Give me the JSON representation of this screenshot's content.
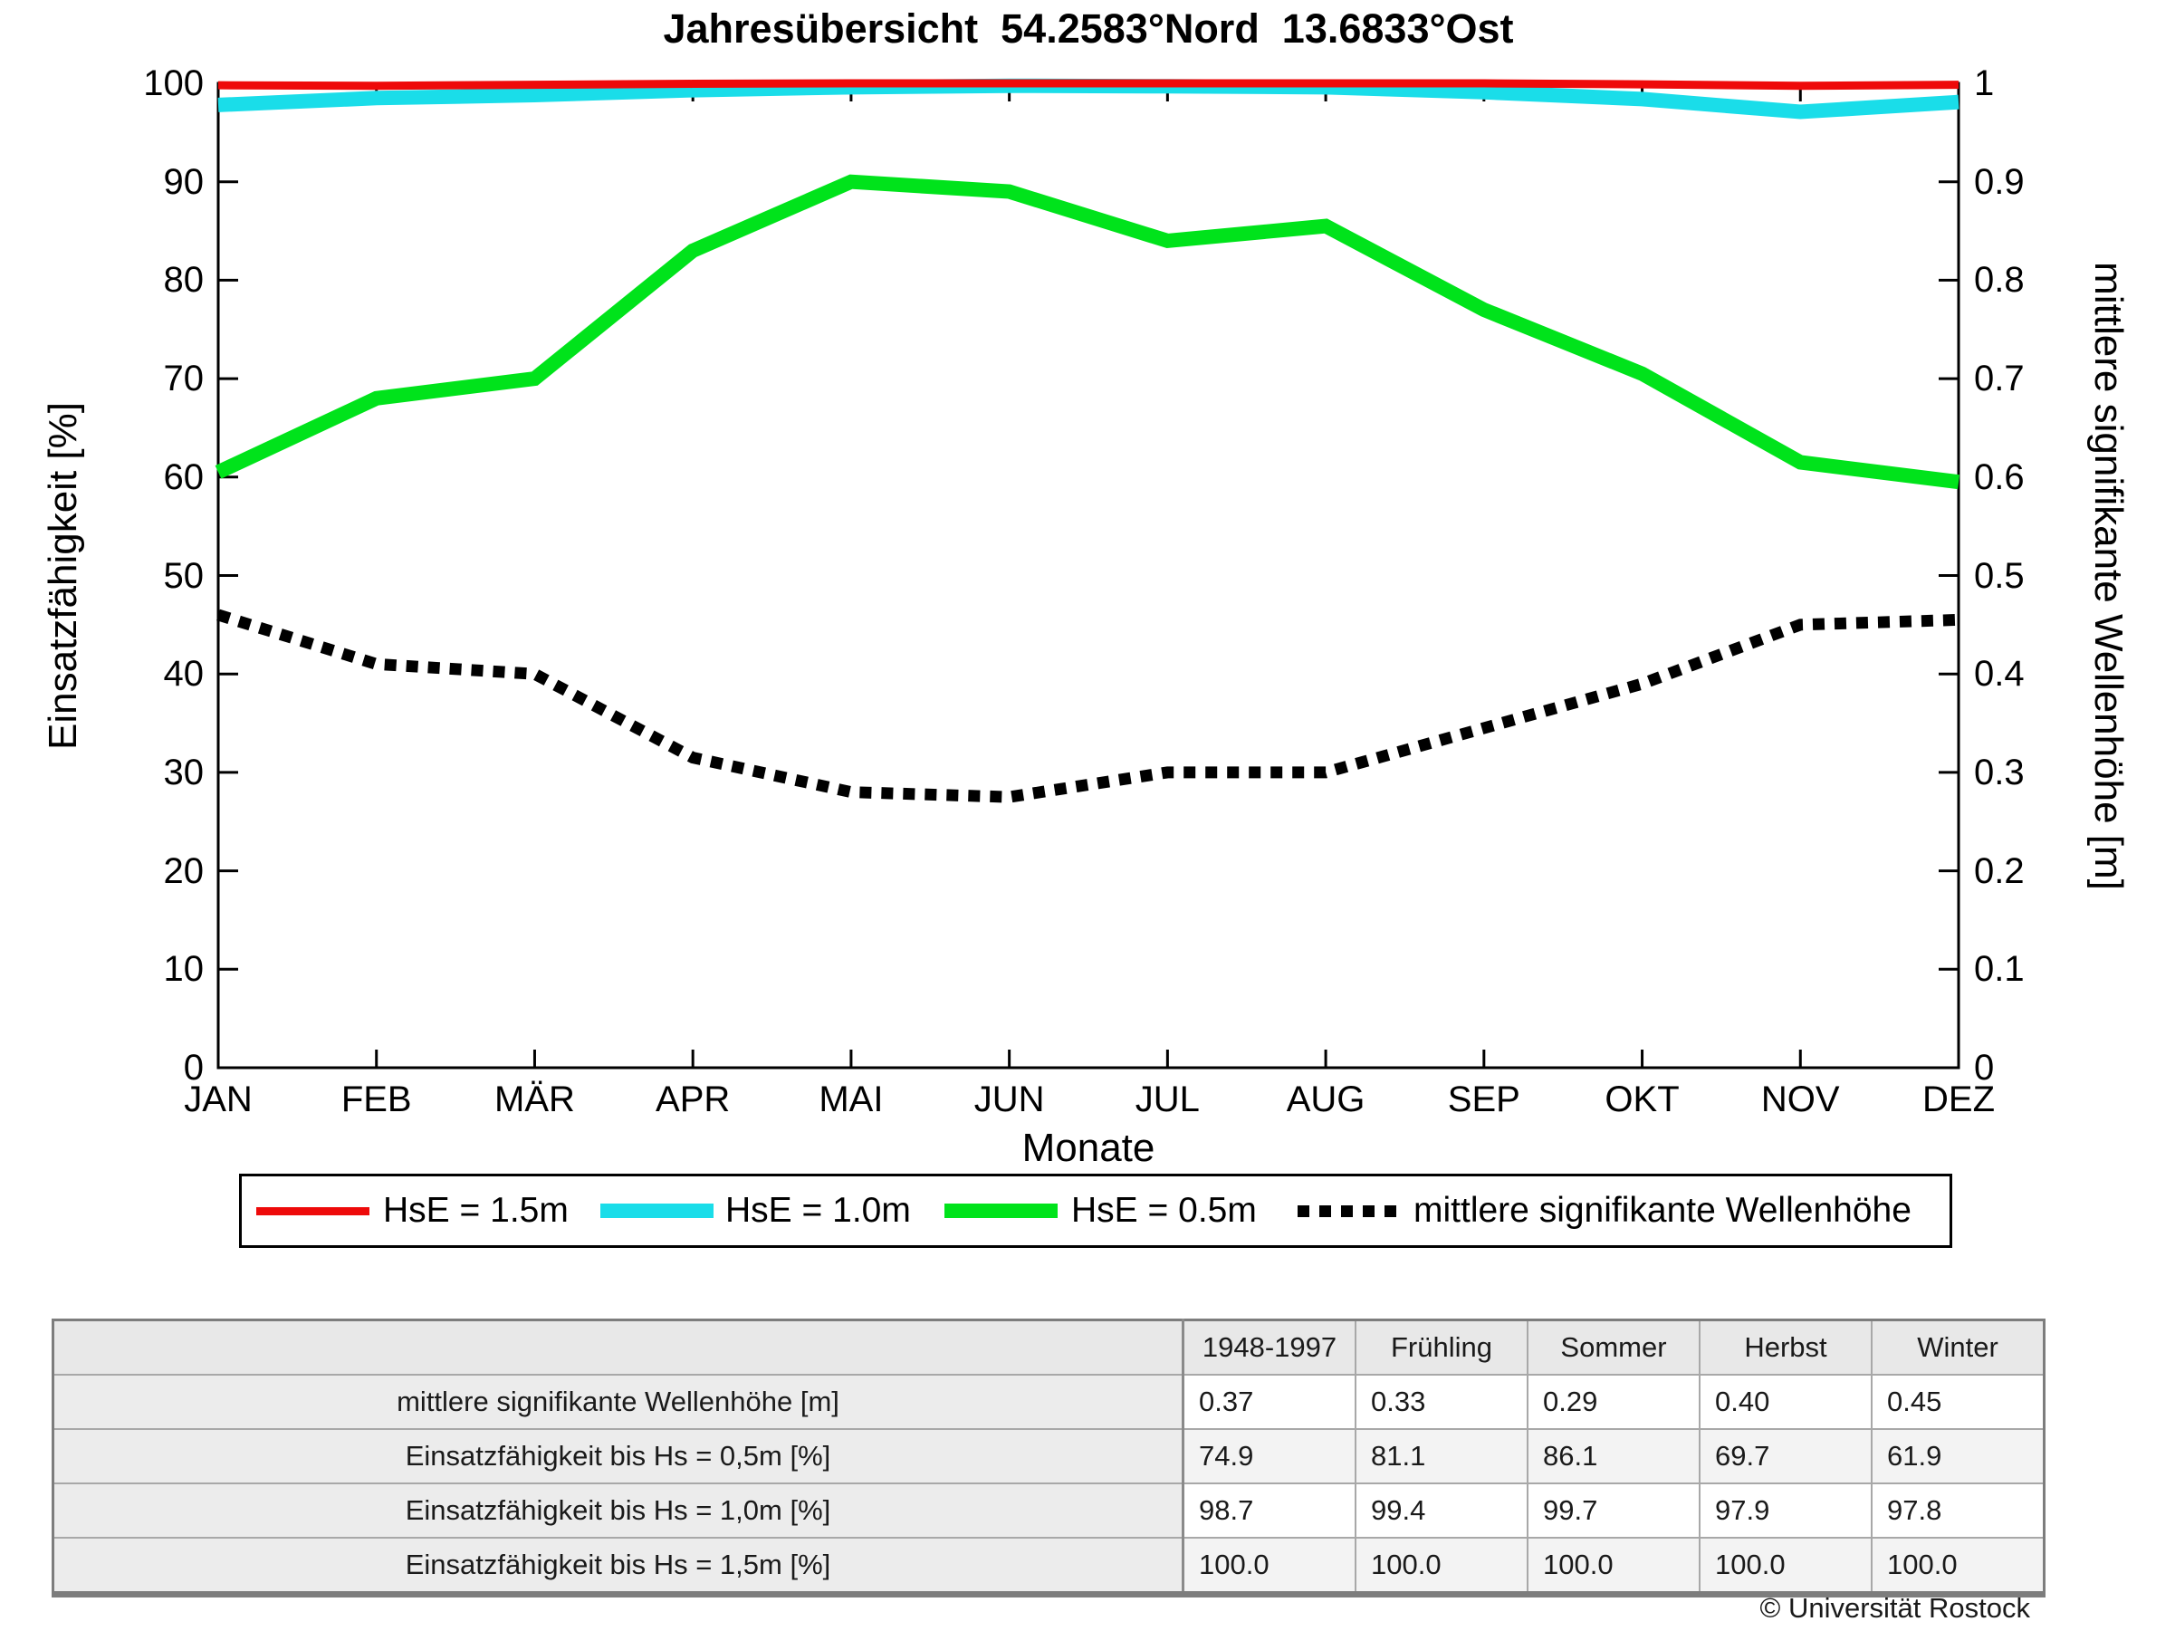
{
  "title": "Jahresübersicht  54.2583°Nord  13.6833°Ost",
  "axes": {
    "left_label": "Einsatzfähigkeit [%]",
    "right_label": "mittlere signifikante Wellenhöhe [m]",
    "x_label": "Monate",
    "left_ticks": [
      "0",
      "10",
      "20",
      "30",
      "40",
      "50",
      "60",
      "70",
      "80",
      "90",
      "100"
    ],
    "right_ticks": [
      "0",
      "0.1",
      "0.2",
      "0.3",
      "0.4",
      "0.5",
      "0.6",
      "0.7",
      "0.8",
      "0.9",
      "1"
    ],
    "months": [
      "JAN",
      "FEB",
      "MÄR",
      "APR",
      "MAI",
      "JUN",
      "JUL",
      "AUG",
      "SEP",
      "OKT",
      "NOV",
      "DEZ"
    ]
  },
  "chart_data": {
    "type": "line",
    "categories": [
      "JAN",
      "FEB",
      "MÄR",
      "APR",
      "MAI",
      "JUN",
      "JUL",
      "AUG",
      "SEP",
      "OKT",
      "NOV",
      "DEZ"
    ],
    "title": "Jahresübersicht  54.2583°Nord  13.6833°Ost",
    "xlabel": "Monate",
    "ylabel_left": "Einsatzfähigkeit [%]",
    "ylabel_right": "mittlere signifikante Wellenhöhe [m]",
    "ylim_left": [
      0,
      100
    ],
    "ylim_right": [
      0,
      1
    ],
    "grid": false,
    "legend_position": "below",
    "series": [
      {
        "name": "HsE = 1.5m",
        "axis": "left",
        "color": "#ee0a0a",
        "width": 9,
        "values": [
          99.8,
          99.75,
          99.85,
          99.95,
          100,
          100,
          100,
          100,
          100,
          99.9,
          99.75,
          99.85
        ]
      },
      {
        "name": "HsE = 1.0m",
        "axis": "left",
        "color": "#1adde9",
        "width": 16,
        "values": [
          97.8,
          98.5,
          98.8,
          99.3,
          99.6,
          99.75,
          99.7,
          99.6,
          99.1,
          98.4,
          97.1,
          98.1
        ]
      },
      {
        "name": "HsE = 0.5m",
        "axis": "left",
        "color": "#00e31b",
        "width": 16,
        "values": [
          60.5,
          68,
          70,
          83,
          90,
          89,
          84,
          85.5,
          77,
          70.5,
          61.5,
          59.5
        ]
      },
      {
        "name": "mittlere signifikante Wellenhöhe",
        "axis": "right",
        "color": "#000000",
        "width": 13,
        "dash": "13 11",
        "values": [
          0.46,
          0.41,
          0.4,
          0.315,
          0.28,
          0.275,
          0.3,
          0.3,
          0.345,
          0.39,
          0.45,
          0.455
        ]
      }
    ]
  },
  "legend": {
    "items": [
      {
        "label": "HsE = 1.5m",
        "color": "#ee0a0a",
        "thickness": 9,
        "dotted": false
      },
      {
        "label": "HsE = 1.0m",
        "color": "#1adde9",
        "thickness": 16,
        "dotted": false
      },
      {
        "label": "HsE = 0.5m",
        "color": "#00e31b",
        "thickness": 16,
        "dotted": false
      },
      {
        "label": "mittlere signifikante Wellenhöhe",
        "color": "#000000",
        "thickness": 13,
        "dotted": true
      }
    ]
  },
  "table": {
    "columns": [
      "",
      "1948-1997",
      "Frühling",
      "Sommer",
      "Herbst",
      "Winter"
    ],
    "rows": [
      {
        "label": "mittlere signifikante Wellenhöhe [m]",
        "values": [
          "0.37",
          "0.33",
          "0.29",
          "0.40",
          "0.45"
        ]
      },
      {
        "label": "Einsatzfähigkeit bis Hs = 0,5m [%]",
        "values": [
          "74.9",
          "81.1",
          "86.1",
          "69.7",
          "61.9"
        ]
      },
      {
        "label": "Einsatzfähigkeit bis Hs = 1,0m [%]",
        "values": [
          "98.7",
          "99.4",
          "99.7",
          "97.9",
          "97.8"
        ]
      },
      {
        "label": "Einsatzfähigkeit bis Hs = 1,5m [%]",
        "values": [
          "100.0",
          "100.0",
          "100.0",
          "100.0",
          "100.0"
        ]
      }
    ]
  },
  "footer": {
    "copyright": "© Universität Rostock"
  }
}
